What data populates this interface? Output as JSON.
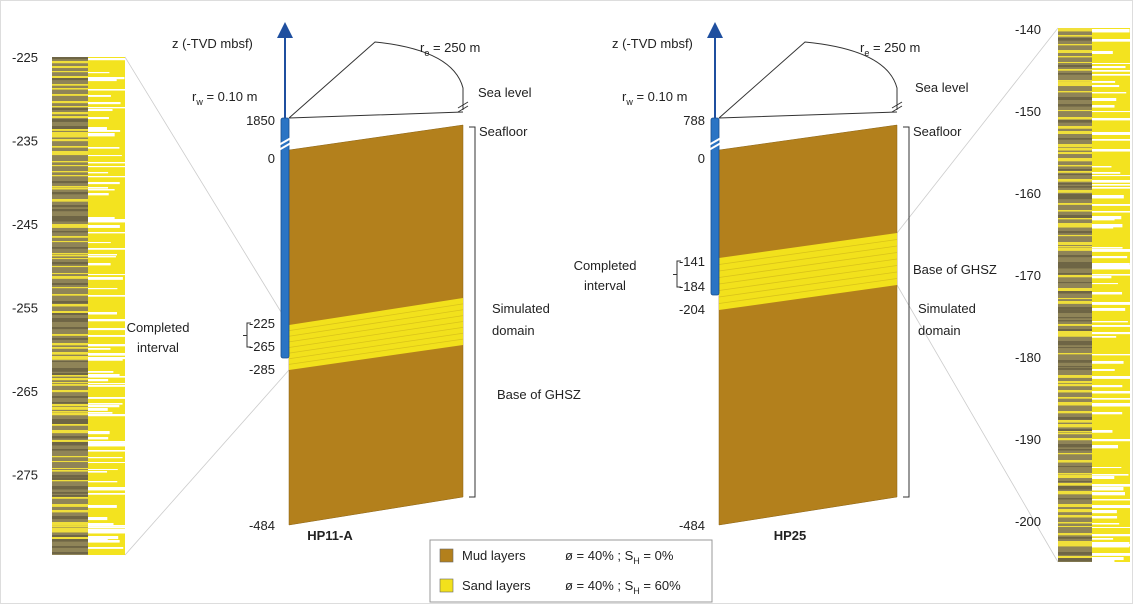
{
  "left_strip": {
    "depth_labels": [
      "-225",
      "-235",
      "-245",
      "-255",
      "-265",
      "-275"
    ]
  },
  "wells": [
    {
      "name": "HP11-A",
      "axis_label": "z (-TVD mbsf)",
      "outer_radius": {
        "symbol": "r",
        "subscript": "e",
        "value": " = 250 m"
      },
      "well_radius": {
        "symbol": "r",
        "subscript": "w",
        "value": " = 0.10 m"
      },
      "sea_level": "Sea level",
      "seafloor": "Seafloor",
      "top_depth": "1850",
      "seafloor_depth": "0",
      "completed_interval": [
        "Completed",
        "interval"
      ],
      "interval_top": "-225",
      "interval_bottom": "-265",
      "ghsz_depth": "-285",
      "bottom_depth": "-484",
      "simulated_domain": [
        "Simulated",
        "domain"
      ],
      "base_ghsz": "Base of GHSZ"
    },
    {
      "name": "HP25",
      "axis_label": "z (-TVD mbsf)",
      "outer_radius": {
        "symbol": "r",
        "subscript": "e",
        "value": " = 250 m"
      },
      "well_radius": {
        "symbol": "r",
        "subscript": "w",
        "value": " = 0.10 m"
      },
      "sea_level": "Sea level",
      "seafloor": "Seafloor",
      "top_depth": "788",
      "seafloor_depth": "0",
      "completed_interval": [
        "Completed",
        "interval"
      ],
      "interval_top": "-141",
      "interval_bottom": "-184",
      "ghsz_depth": "-204",
      "bottom_depth": "-484",
      "simulated_domain": [
        "Simulated",
        "domain"
      ],
      "base_ghsz": "Base of GHSZ"
    }
  ],
  "right_strip": {
    "depth_labels": [
      "-140",
      "-150",
      "-160",
      "-170",
      "-180",
      "-190",
      "-200"
    ]
  },
  "legend": {
    "rows": [
      {
        "label": "Mud layers",
        "properties": {
          "main": "ø = 40% ; S",
          "subscript": "H",
          "value": " = 0%"
        }
      },
      {
        "label": "Sand layers",
        "properties": {
          "main": "ø = 40% ; S",
          "subscript": "H",
          "value": " = 60%"
        }
      }
    ]
  }
}
